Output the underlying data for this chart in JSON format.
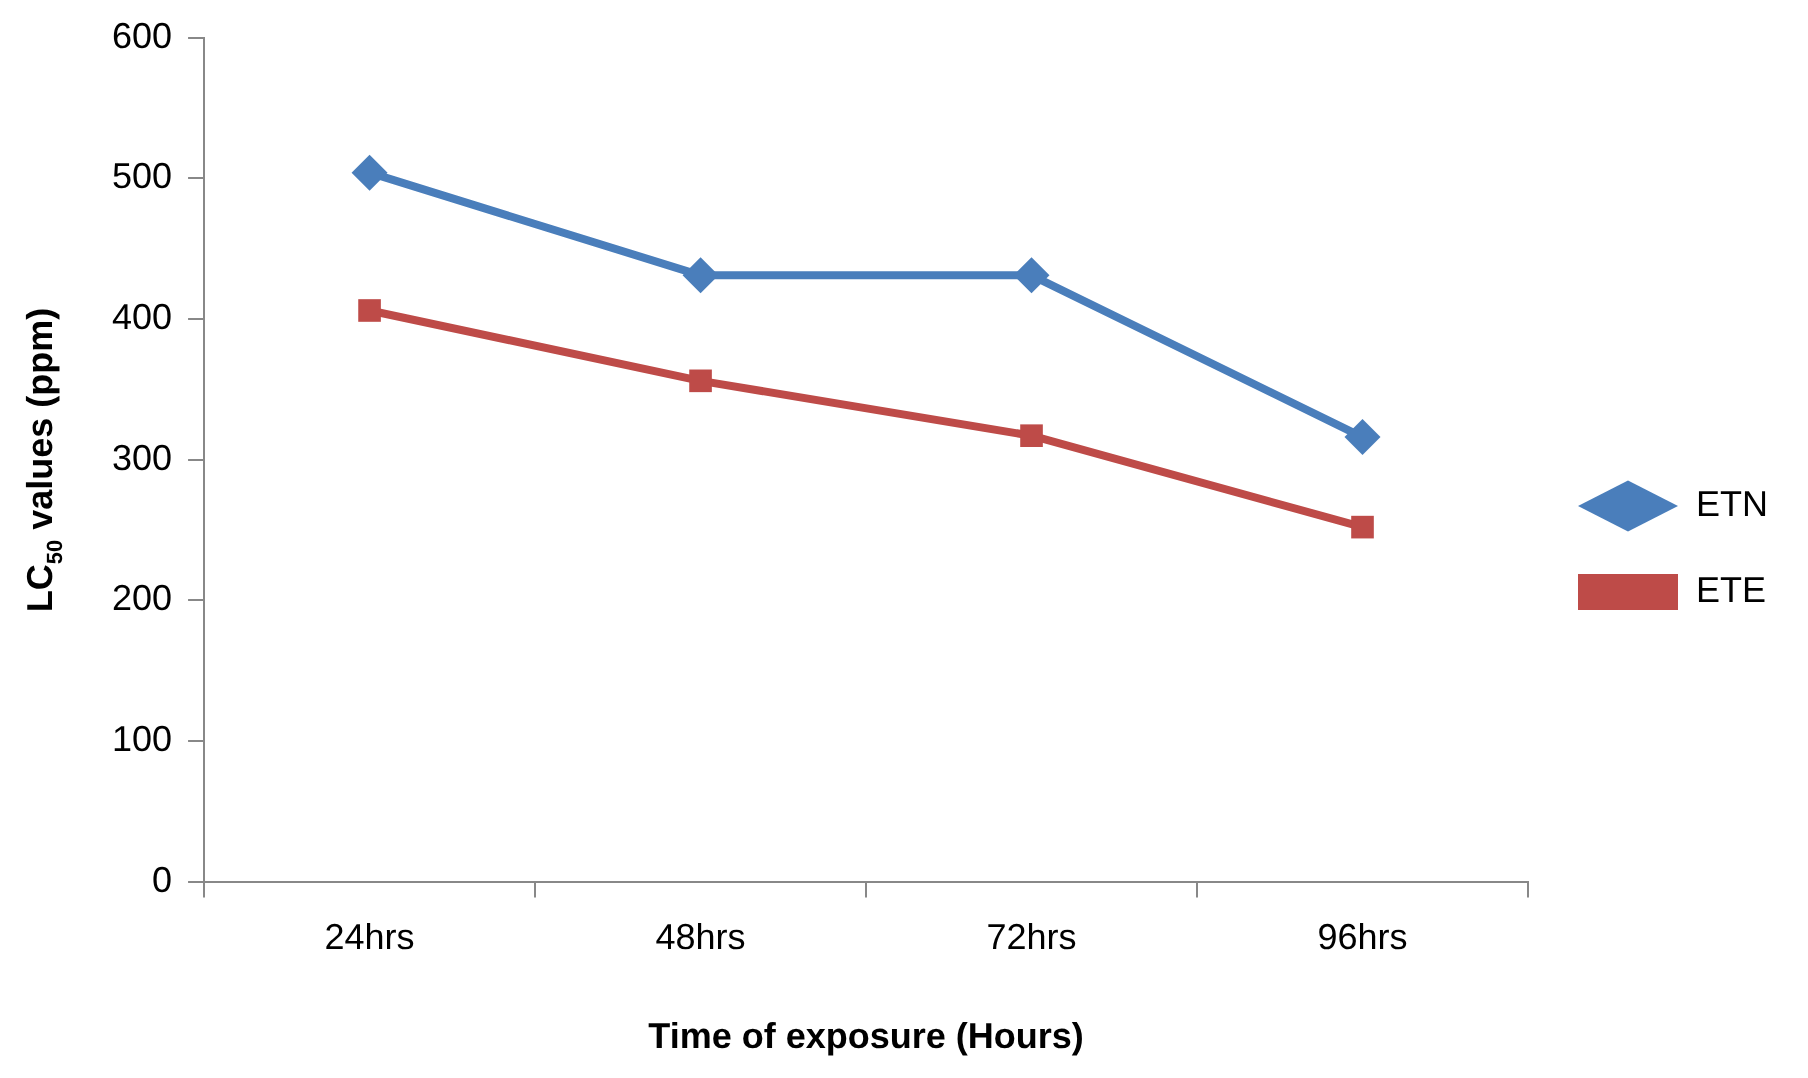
{
  "chart_data": {
    "type": "line",
    "xlabel": "Time of exposure (Hours)",
    "ylabel": "LC$_{50}$ values (ppm)",
    "categories": [
      "24hrs",
      "48hrs",
      "72hrs",
      "96hrs"
    ],
    "series": [
      {
        "name": "ETN",
        "color": "#4a7ebb",
        "marker": "diamond",
        "values": [
          504,
          431,
          431,
          316
        ]
      },
      {
        "name": "ETE",
        "color": "#be4b48",
        "marker": "square",
        "values": [
          406,
          356,
          317,
          252
        ]
      }
    ],
    "ylim": [
      0,
      600
    ],
    "yticks": [
      0,
      100,
      200,
      300,
      400,
      500,
      600
    ],
    "grid": false,
    "legend": "right",
    "line_style": "solid"
  }
}
